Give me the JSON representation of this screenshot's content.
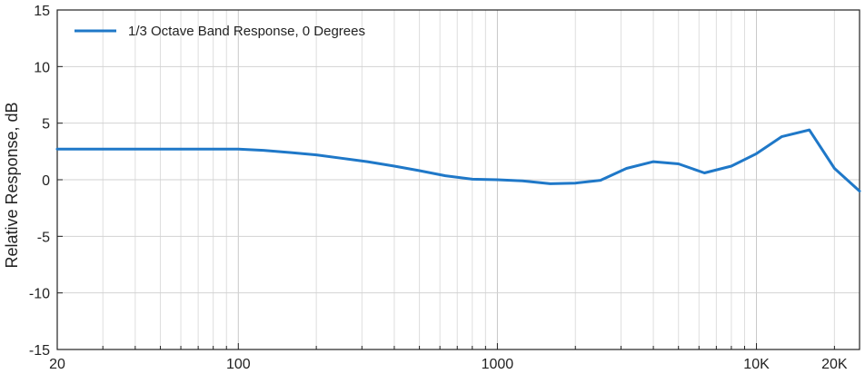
{
  "chart_data": {
    "type": "line",
    "title": "",
    "xlabel": "",
    "ylabel": "Relative Response, dB",
    "x_scale": "log",
    "xlim": [
      20,
      25000
    ],
    "ylim": [
      -15,
      15
    ],
    "grid": true,
    "legend_position": "top-left",
    "x_ticks": [
      {
        "value": 20,
        "label": "20"
      },
      {
        "value": 100,
        "label": "100"
      },
      {
        "value": 1000,
        "label": "1000"
      },
      {
        "value": 10000,
        "label": "10K"
      },
      {
        "value": 20000,
        "label": "20K"
      }
    ],
    "y_ticks": [
      {
        "value": 15,
        "label": "15"
      },
      {
        "value": 10,
        "label": "10"
      },
      {
        "value": 5,
        "label": "5"
      },
      {
        "value": 0,
        "label": "0"
      },
      {
        "value": -5,
        "label": "-5"
      },
      {
        "value": -10,
        "label": "-10"
      },
      {
        "value": -15,
        "label": "-15"
      }
    ],
    "series": [
      {
        "name": "1/3 Octave Band Response, 0 Degrees",
        "color": "#1f78c8",
        "points": [
          {
            "x": 20,
            "y": 2.7
          },
          {
            "x": 25,
            "y": 2.7
          },
          {
            "x": 31.5,
            "y": 2.7
          },
          {
            "x": 40,
            "y": 2.7
          },
          {
            "x": 50,
            "y": 2.7
          },
          {
            "x": 63,
            "y": 2.7
          },
          {
            "x": 80,
            "y": 2.7
          },
          {
            "x": 100,
            "y": 2.7
          },
          {
            "x": 125,
            "y": 2.6
          },
          {
            "x": 160,
            "y": 2.4
          },
          {
            "x": 200,
            "y": 2.2
          },
          {
            "x": 250,
            "y": 1.9
          },
          {
            "x": 315,
            "y": 1.6
          },
          {
            "x": 400,
            "y": 1.2
          },
          {
            "x": 500,
            "y": 0.8
          },
          {
            "x": 630,
            "y": 0.35
          },
          {
            "x": 800,
            "y": 0.05
          },
          {
            "x": 1000,
            "y": 0.0
          },
          {
            "x": 1250,
            "y": -0.1
          },
          {
            "x": 1600,
            "y": -0.35
          },
          {
            "x": 2000,
            "y": -0.3
          },
          {
            "x": 2500,
            "y": -0.05
          },
          {
            "x": 3150,
            "y": 1.0
          },
          {
            "x": 4000,
            "y": 1.6
          },
          {
            "x": 5000,
            "y": 1.4
          },
          {
            "x": 6300,
            "y": 0.6
          },
          {
            "x": 8000,
            "y": 1.2
          },
          {
            "x": 10000,
            "y": 2.3
          },
          {
            "x": 12500,
            "y": 3.8
          },
          {
            "x": 16000,
            "y": 4.4
          },
          {
            "x": 20000,
            "y": 1.0
          },
          {
            "x": 25000,
            "y": -1.0
          }
        ]
      }
    ]
  }
}
